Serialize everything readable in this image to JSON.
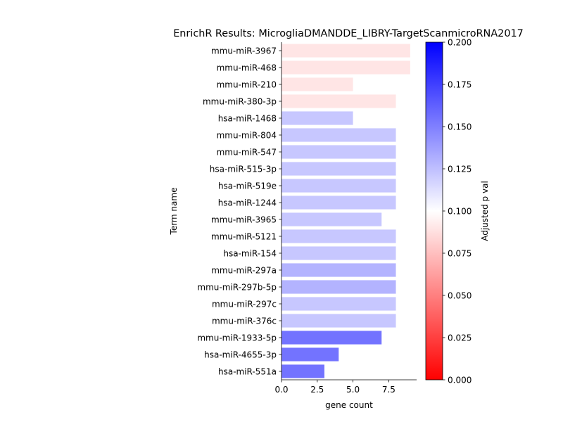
{
  "chart_data": {
    "type": "bar",
    "orientation": "horizontal",
    "title": "EnrichR Results: MicrogliaDMANDDE_LIBRY-TargetScanmicroRNA2017",
    "xlabel": "gene count",
    "ylabel": "Term name",
    "xlim": [
      0,
      9.45
    ],
    "xticks": [
      "0.0",
      "2.5",
      "5.0",
      "7.5"
    ],
    "xtick_values": [
      0,
      2.5,
      5,
      7.5
    ],
    "grid": false,
    "categories": [
      "mmu-miR-3967",
      "mmu-miR-468",
      "mmu-miR-210",
      "mmu-miR-380-3p",
      "hsa-miR-1468",
      "mmu-miR-804",
      "mmu-miR-547",
      "hsa-miR-515-3p",
      "hsa-miR-519e",
      "hsa-miR-1244",
      "mmu-miR-3965",
      "mmu-miR-5121",
      "hsa-miR-154",
      "mmu-miR-297a",
      "mmu-miR-297b-5p",
      "mmu-miR-297c",
      "mmu-miR-376c",
      "mmu-miR-1933-5p",
      "hsa-miR-4655-3p",
      "hsa-miR-551a"
    ],
    "values": [
      9,
      9,
      5,
      8,
      5,
      8,
      8,
      8,
      8,
      8,
      7,
      8,
      8,
      8,
      8,
      8,
      8,
      7,
      4,
      3
    ],
    "adjusted_p": [
      0.09,
      0.09,
      0.09,
      0.09,
      0.122,
      0.122,
      0.122,
      0.122,
      0.122,
      0.122,
      0.122,
      0.122,
      0.122,
      0.13,
      0.13,
      0.122,
      0.122,
      0.155,
      0.155,
      0.155
    ],
    "colorbar": {
      "label": "Adjusted p val",
      "range": [
        0,
        0.2
      ],
      "ticks": [
        "0.000",
        "0.025",
        "0.050",
        "0.075",
        "0.100",
        "0.125",
        "0.150",
        "0.175",
        "0.200"
      ],
      "tick_values": [
        0,
        0.025,
        0.05,
        0.075,
        0.1,
        0.125,
        0.15,
        0.175,
        0.2
      ],
      "colors": [
        "#ff0000",
        "#ffffff",
        "#0000ff"
      ]
    }
  }
}
